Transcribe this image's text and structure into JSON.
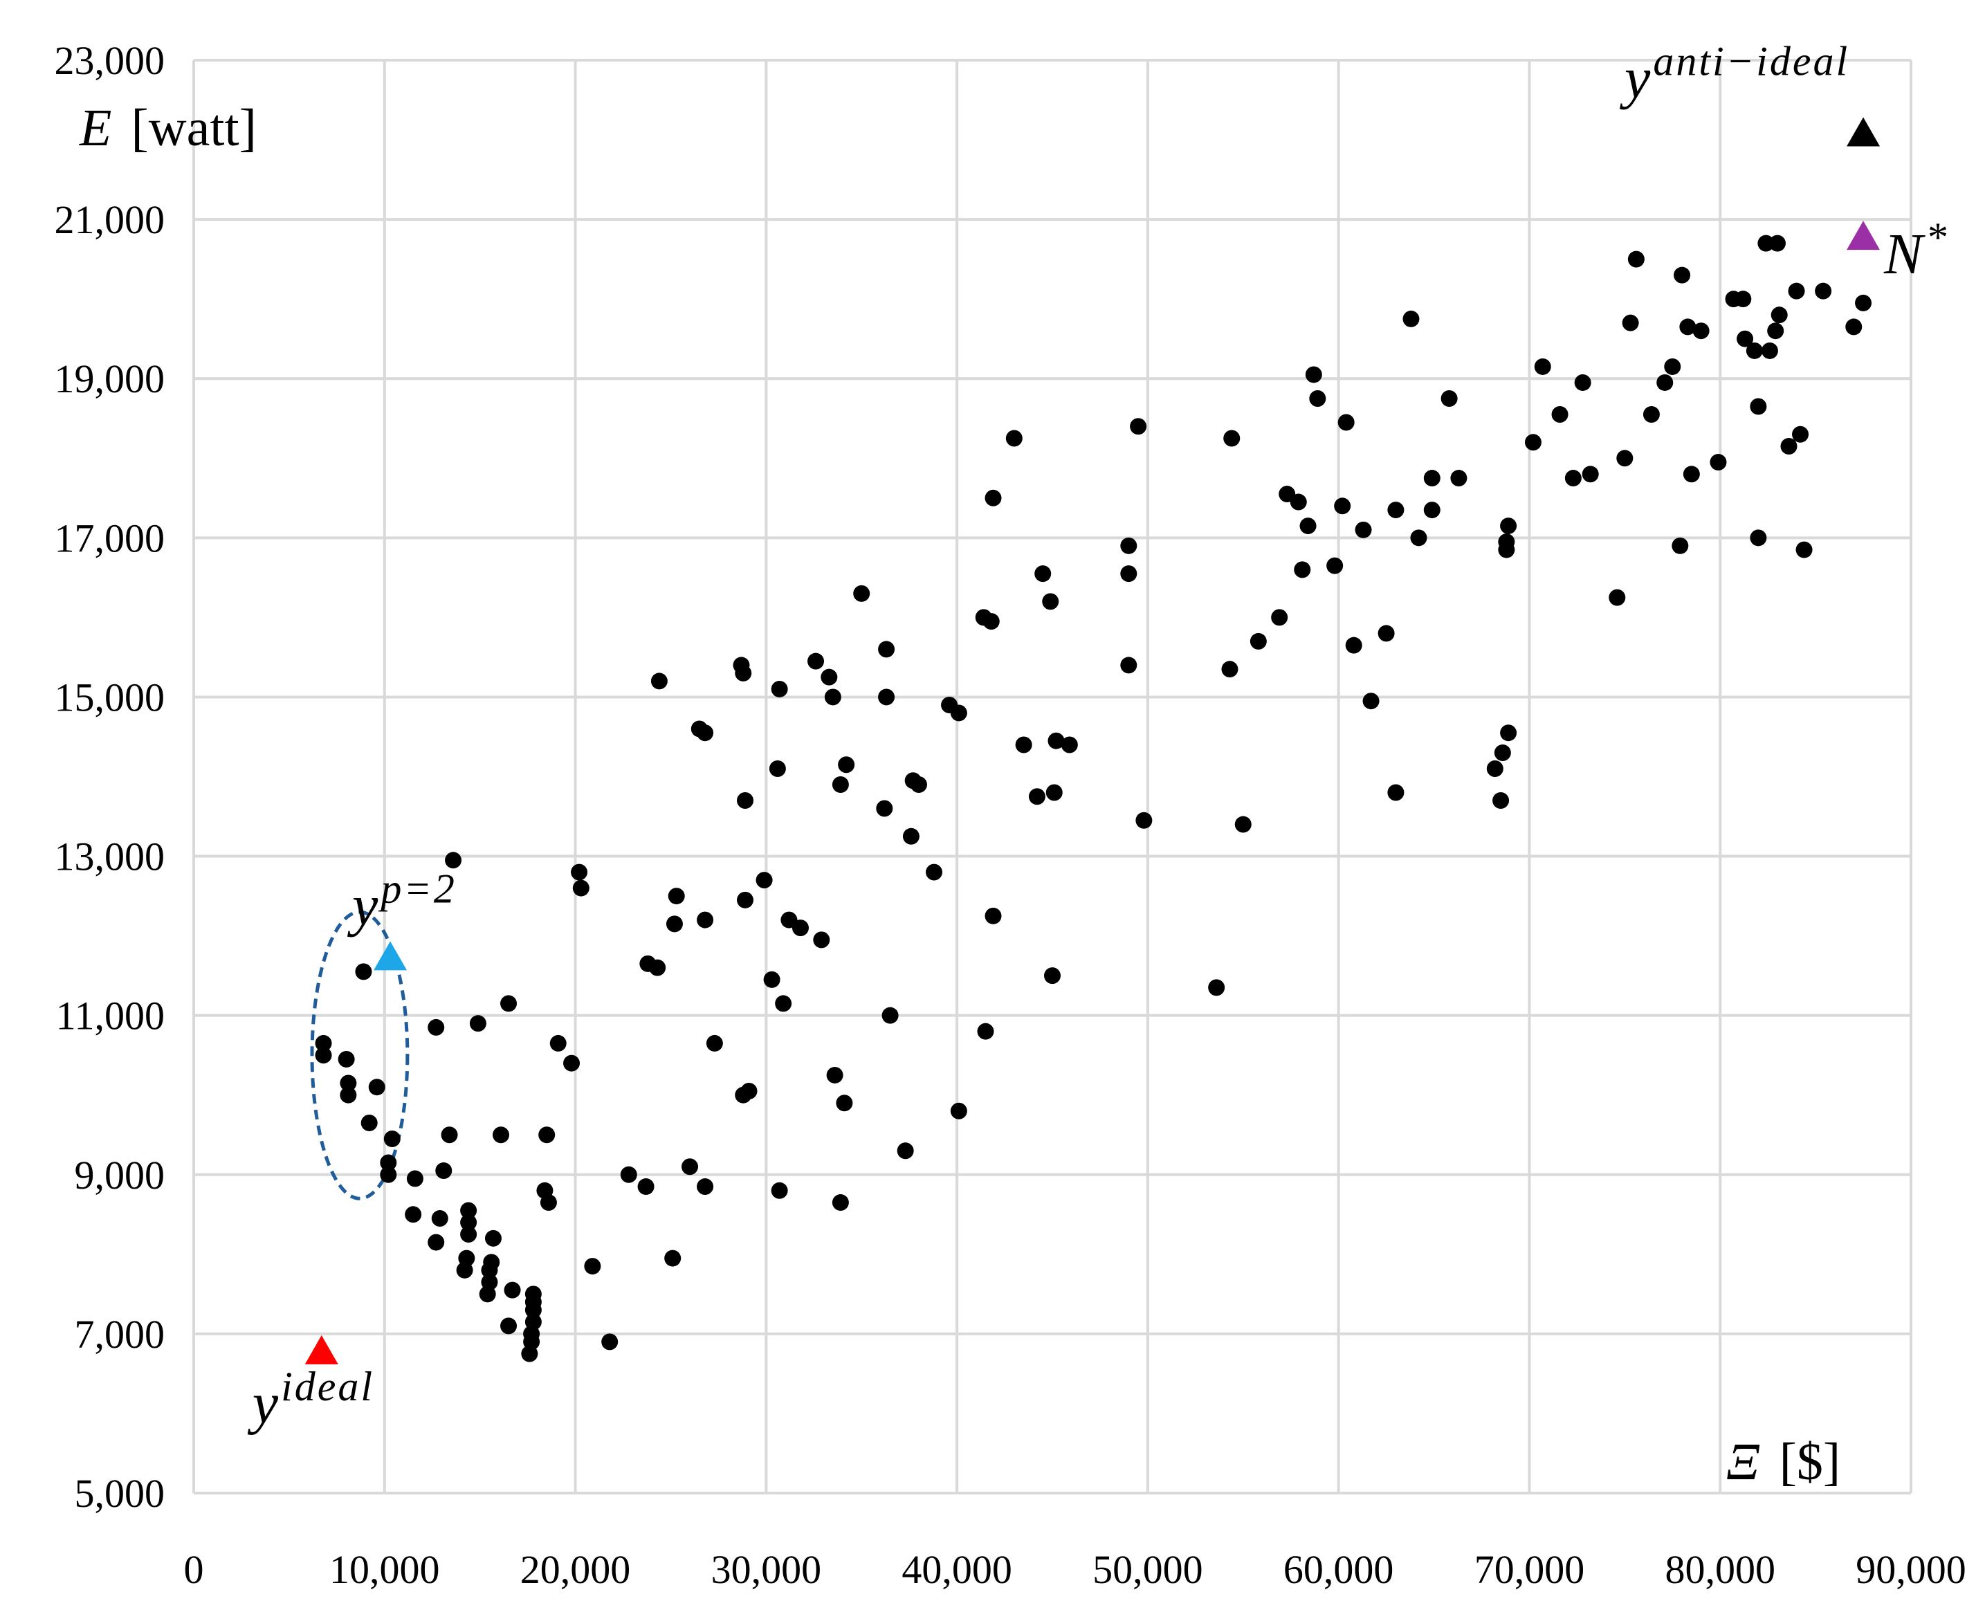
{
  "chart_data": {
    "type": "scatter",
    "xlim": [
      0,
      90000
    ],
    "ylim": [
      5000,
      23000
    ],
    "x_ticks": [
      "0",
      "10,000",
      "20,000",
      "30,000",
      "40,000",
      "50,000",
      "60,000",
      "70,000",
      "80,000",
      "90,000"
    ],
    "y_ticks": [
      "5,000",
      "7,000",
      "9,000",
      "11,000",
      "13,000",
      "15,000",
      "17,000",
      "19,000",
      "21,000",
      "23,000"
    ],
    "xlabel": {
      "symbol": "Ξ",
      "unit": "[$]"
    },
    "ylabel": {
      "symbol": "E",
      "unit": "[watt]"
    },
    "grid": true,
    "marker_color": "#000000",
    "special_points": [
      {
        "label": "y",
        "superscript": "ideal",
        "x": 6700,
        "y": 6800,
        "color": "#ff0000",
        "marker": "triangle"
      },
      {
        "label": "y",
        "superscript": "anti−ideal",
        "x": 87500,
        "y": 22100,
        "color": "#000000",
        "marker": "triangle"
      },
      {
        "label": "N",
        "superscript": "*",
        "x": 87500,
        "y": 20800,
        "color": "#9b30a6",
        "marker": "triangle"
      },
      {
        "label": "y",
        "superscript": "p=2",
        "x": 10300,
        "y": 11750,
        "color": "#1ea7e8",
        "marker": "triangle"
      }
    ],
    "highlight_ellipse": {
      "cx": 8700,
      "cy": 10500,
      "rx": 2500,
      "ry": 1800,
      "color": "#1f5c99"
    },
    "points": [
      [
        6800,
        10650
      ],
      [
        6800,
        10500
      ],
      [
        8000,
        10450
      ],
      [
        8100,
        10150
      ],
      [
        8100,
        10000
      ],
      [
        9600,
        10100
      ],
      [
        9200,
        9650
      ],
      [
        8900,
        11550
      ],
      [
        10400,
        9450
      ],
      [
        10200,
        9150
      ],
      [
        10200,
        9000
      ],
      [
        11600,
        8950
      ],
      [
        11500,
        8500
      ],
      [
        12700,
        10850
      ],
      [
        12900,
        8450
      ],
      [
        12700,
        8150
      ],
      [
        13100,
        9050
      ],
      [
        13400,
        9500
      ],
      [
        13600,
        12950
      ],
      [
        14400,
        8550
      ],
      [
        14400,
        8400
      ],
      [
        14400,
        8250
      ],
      [
        14300,
        7950
      ],
      [
        14200,
        7800
      ],
      [
        14900,
        10900
      ],
      [
        15700,
        8200
      ],
      [
        15600,
        7900
      ],
      [
        15500,
        7800
      ],
      [
        15500,
        7650
      ],
      [
        15400,
        7500
      ],
      [
        16100,
        9500
      ],
      [
        16500,
        11150
      ],
      [
        16700,
        7550
      ],
      [
        16500,
        7100
      ],
      [
        17800,
        7500
      ],
      [
        17800,
        7400
      ],
      [
        17800,
        7300
      ],
      [
        17800,
        7150
      ],
      [
        17700,
        7000
      ],
      [
        17700,
        6900
      ],
      [
        17600,
        6750
      ],
      [
        18400,
        8800
      ],
      [
        18500,
        9500
      ],
      [
        18600,
        8650
      ],
      [
        19100,
        10650
      ],
      [
        19800,
        10400
      ],
      [
        20200,
        12800
      ],
      [
        20300,
        12600
      ],
      [
        20900,
        7850
      ],
      [
        21800,
        6900
      ],
      [
        22800,
        9000
      ],
      [
        23700,
        8850
      ],
      [
        23800,
        11650
      ],
      [
        24300,
        11600
      ],
      [
        24400,
        15200
      ],
      [
        25100,
        7950
      ],
      [
        25200,
        12150
      ],
      [
        25300,
        12500
      ],
      [
        26000,
        9100
      ],
      [
        26500,
        14600
      ],
      [
        26800,
        14550
      ],
      [
        26800,
        12200
      ],
      [
        26800,
        8850
      ],
      [
        27300,
        10650
      ],
      [
        28700,
        15400
      ],
      [
        28800,
        15300
      ],
      [
        28900,
        13700
      ],
      [
        28900,
        12450
      ],
      [
        28800,
        10000
      ],
      [
        29100,
        10050
      ],
      [
        29900,
        12700
      ],
      [
        30300,
        11450
      ],
      [
        30700,
        15100
      ],
      [
        30600,
        14100
      ],
      [
        30700,
        8800
      ],
      [
        30900,
        11150
      ],
      [
        31200,
        12200
      ],
      [
        31800,
        12100
      ],
      [
        32600,
        15450
      ],
      [
        32900,
        11950
      ],
      [
        33300,
        15250
      ],
      [
        33500,
        15000
      ],
      [
        33600,
        10250
      ],
      [
        33900,
        13900
      ],
      [
        34200,
        14150
      ],
      [
        33900,
        8650
      ],
      [
        34100,
        9900
      ],
      [
        35000,
        16300
      ],
      [
        36200,
        13600
      ],
      [
        36300,
        15600
      ],
      [
        36300,
        15000
      ],
      [
        36500,
        11000
      ],
      [
        37300,
        9300
      ],
      [
        37600,
        13250
      ],
      [
        37700,
        13950
      ],
      [
        38000,
        13900
      ],
      [
        38800,
        12800
      ],
      [
        39600,
        14900
      ],
      [
        40100,
        14800
      ],
      [
        40100,
        9800
      ],
      [
        41400,
        16000
      ],
      [
        41500,
        10800
      ],
      [
        41900,
        17500
      ],
      [
        41800,
        15950
      ],
      [
        41900,
        12250
      ],
      [
        43000,
        18250
      ],
      [
        43500,
        14400
      ],
      [
        44200,
        13750
      ],
      [
        44500,
        16550
      ],
      [
        44900,
        16200
      ],
      [
        45000,
        11500
      ],
      [
        45200,
        14450
      ],
      [
        45100,
        13800
      ],
      [
        45900,
        14400
      ],
      [
        49000,
        16900
      ],
      [
        49000,
        16550
      ],
      [
        49000,
        15400
      ],
      [
        49500,
        18400
      ],
      [
        49800,
        13450
      ],
      [
        53600,
        11350
      ],
      [
        54300,
        15350
      ],
      [
        54400,
        18250
      ],
      [
        55000,
        13400
      ],
      [
        55800,
        15700
      ],
      [
        56900,
        16000
      ],
      [
        57300,
        17550
      ],
      [
        57900,
        17450
      ],
      [
        58100,
        16600
      ],
      [
        58400,
        17150
      ],
      [
        58700,
        19050
      ],
      [
        58900,
        18750
      ],
      [
        59800,
        16650
      ],
      [
        60200,
        17400
      ],
      [
        60400,
        18450
      ],
      [
        60800,
        15650
      ],
      [
        61300,
        17100
      ],
      [
        61700,
        14950
      ],
      [
        62500,
        15800
      ],
      [
        63000,
        17350
      ],
      [
        63000,
        13800
      ],
      [
        63800,
        19750
      ],
      [
        64200,
        17000
      ],
      [
        64900,
        17750
      ],
      [
        64900,
        17350
      ],
      [
        65800,
        18750
      ],
      [
        66300,
        17750
      ],
      [
        68200,
        14100
      ],
      [
        68500,
        13700
      ],
      [
        68600,
        14300
      ],
      [
        68800,
        16850
      ],
      [
        68800,
        16950
      ],
      [
        68900,
        17150
      ],
      [
        68900,
        14550
      ],
      [
        70200,
        18200
      ],
      [
        70700,
        19150
      ],
      [
        71600,
        18550
      ],
      [
        72300,
        17750
      ],
      [
        72800,
        18950
      ],
      [
        73200,
        17800
      ],
      [
        74600,
        16250
      ],
      [
        75000,
        18000
      ],
      [
        75300,
        19700
      ],
      [
        75600,
        20500
      ],
      [
        76400,
        18550
      ],
      [
        77100,
        18950
      ],
      [
        77500,
        19150
      ],
      [
        77900,
        16900
      ],
      [
        78000,
        20300
      ],
      [
        78300,
        19650
      ],
      [
        78500,
        17800
      ],
      [
        79000,
        19600
      ],
      [
        79900,
        17950
      ],
      [
        80700,
        20000
      ],
      [
        81200,
        20000
      ],
      [
        81300,
        19500
      ],
      [
        81800,
        19350
      ],
      [
        82000,
        18650
      ],
      [
        82000,
        17000
      ],
      [
        82400,
        20700
      ],
      [
        82600,
        19350
      ],
      [
        82900,
        19600
      ],
      [
        83000,
        20700
      ],
      [
        83100,
        19800
      ],
      [
        83600,
        18150
      ],
      [
        84000,
        20100
      ],
      [
        84200,
        18300
      ],
      [
        84400,
        16850
      ],
      [
        85400,
        20100
      ],
      [
        87000,
        19650
      ],
      [
        87500,
        19950
      ]
    ]
  }
}
